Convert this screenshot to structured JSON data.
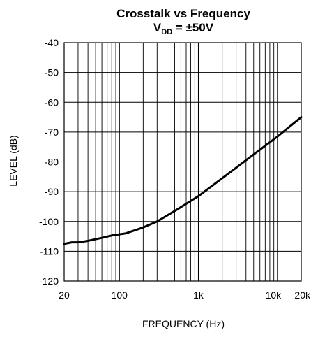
{
  "chart_data": {
    "type": "line",
    "title": "Crosstalk vs Frequency",
    "subtitle": {
      "main": "V",
      "subscript": "DD",
      "rest": " = ±50V"
    },
    "xlabel": "FREQUENCY (Hz)",
    "ylabel": "LEVEL (dB)",
    "xscale": "log",
    "xlim": [
      20,
      20000
    ],
    "ylim": [
      -120,
      -40
    ],
    "x_ticks": [
      {
        "value": 20,
        "label": "20"
      },
      {
        "value": 100,
        "label": "100"
      },
      {
        "value": 1000,
        "label": "1k"
      },
      {
        "value": 10000,
        "label": "10k"
      },
      {
        "value": 20000,
        "label": "20k"
      }
    ],
    "y_ticks": [
      {
        "value": -40,
        "label": "-40"
      },
      {
        "value": -50,
        "label": "-50"
      },
      {
        "value": -60,
        "label": "-60"
      },
      {
        "value": -70,
        "label": "-70"
      },
      {
        "value": -80,
        "label": "-80"
      },
      {
        "value": -90,
        "label": "-90"
      },
      {
        "value": -100,
        "label": "-100"
      },
      {
        "value": -110,
        "label": "-110"
      },
      {
        "value": -120,
        "label": "-120"
      }
    ],
    "grid": true,
    "series": [
      {
        "x": [
          20,
          25,
          30,
          40,
          60,
          80,
          120,
          200,
          300,
          500,
          1000,
          2000,
          5000,
          10000,
          20000
        ],
        "y": [
          -107.5,
          -107,
          -107,
          -106.5,
          -105.5,
          -104.7,
          -104,
          -102,
          -100,
          -96.5,
          -91.5,
          -85.5,
          -77.5,
          -71.5,
          -65
        ]
      }
    ],
    "color": "#000000"
  }
}
